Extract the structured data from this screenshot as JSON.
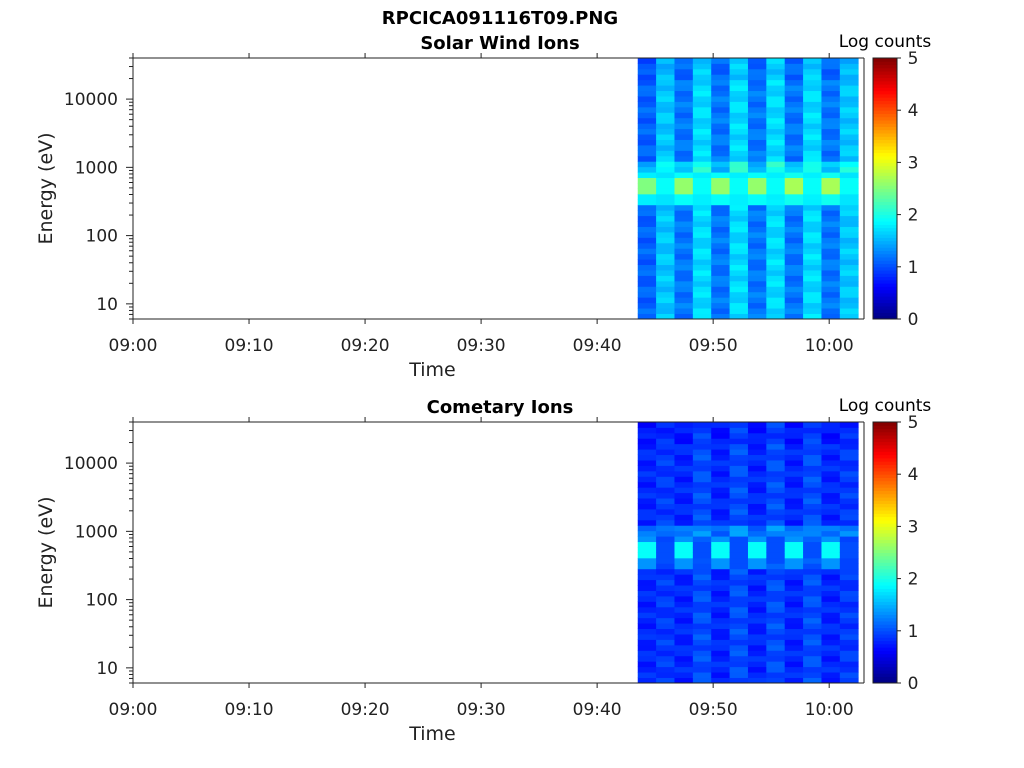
{
  "figure_title": "RPCICA091116T09.PNG",
  "chart_data": [
    {
      "type": "heatmap",
      "title": "Solar Wind Ions",
      "xlabel": "Time",
      "ylabel": "Energy (eV)",
      "x_ticks": [
        "09:00",
        "09:10",
        "09:20",
        "09:30",
        "09:40",
        "09:50",
        "10:00"
      ],
      "xlim": [
        "09:00",
        "10:03"
      ],
      "y_scale": "log",
      "y_ticks": [
        10,
        100,
        1000,
        10000
      ],
      "y_tick_labels": [
        "10",
        "100",
        "1000",
        "10000"
      ],
      "ylim": [
        6,
        40000
      ],
      "colorbar": {
        "label": "Log counts",
        "range": [
          0,
          5
        ],
        "ticks": [
          "0",
          "1",
          "2",
          "3",
          "4",
          "5"
        ],
        "colormap": "jet"
      },
      "data_start": "09:43:30",
      "data_end": "10:02:30",
      "sweeps": [
        {
          "t": "09:43:30",
          "bg": 1.1,
          "peak": 2.5
        },
        {
          "t": "09:45:10",
          "bg": 1.6,
          "peak": 1.9
        },
        {
          "t": "09:46:50",
          "bg": 1.2,
          "peak": 2.6
        },
        {
          "t": "09:48:30",
          "bg": 1.7,
          "peak": 1.9
        },
        {
          "t": "09:50:10",
          "bg": 1.2,
          "peak": 2.6
        },
        {
          "t": "09:51:50",
          "bg": 1.7,
          "peak": 1.9
        },
        {
          "t": "09:53:30",
          "bg": 1.2,
          "peak": 2.6
        },
        {
          "t": "09:55:10",
          "bg": 1.7,
          "peak": 1.9
        },
        {
          "t": "09:56:50",
          "bg": 1.2,
          "peak": 2.7
        },
        {
          "t": "09:58:30",
          "bg": 1.7,
          "peak": 1.9
        },
        {
          "t": "10:00:10",
          "bg": 1.2,
          "peak": 2.7
        },
        {
          "t": "10:01:30",
          "bg": 1.6,
          "peak": 1.9
        }
      ],
      "peak_energy_ev": 500
    },
    {
      "type": "heatmap",
      "title": "Cometary Ions",
      "xlabel": "Time",
      "ylabel": "Energy (eV)",
      "x_ticks": [
        "09:00",
        "09:10",
        "09:20",
        "09:30",
        "09:40",
        "09:50",
        "10:00"
      ],
      "xlim": [
        "09:00",
        "10:03"
      ],
      "y_scale": "log",
      "y_ticks": [
        10,
        100,
        1000,
        10000
      ],
      "y_tick_labels": [
        "10",
        "100",
        "1000",
        "10000"
      ],
      "ylim": [
        6,
        40000
      ],
      "colorbar": {
        "label": "Log counts",
        "range": [
          0,
          5
        ],
        "ticks": [
          "0",
          "1",
          "2",
          "3",
          "4",
          "5"
        ],
        "colormap": "jet"
      },
      "data_start": "09:43:30",
      "data_end": "10:02:30",
      "sweeps": [
        {
          "t": "09:43:30",
          "bg": 0.8,
          "peak": 1.9
        },
        {
          "t": "09:45:10",
          "bg": 0.9,
          "peak": 1.0
        },
        {
          "t": "09:46:50",
          "bg": 0.8,
          "peak": 1.9
        },
        {
          "t": "09:48:30",
          "bg": 1.0,
          "peak": 1.0
        },
        {
          "t": "09:50:10",
          "bg": 0.8,
          "peak": 1.9
        },
        {
          "t": "09:51:50",
          "bg": 1.0,
          "peak": 1.0
        },
        {
          "t": "09:53:30",
          "bg": 0.8,
          "peak": 1.9
        },
        {
          "t": "09:55:10",
          "bg": 1.0,
          "peak": 1.0
        },
        {
          "t": "09:56:50",
          "bg": 0.8,
          "peak": 1.9
        },
        {
          "t": "09:58:30",
          "bg": 1.0,
          "peak": 1.0
        },
        {
          "t": "10:00:10",
          "bg": 0.8,
          "peak": 1.9
        },
        {
          "t": "10:01:30",
          "bg": 0.9,
          "peak": 1.0
        }
      ],
      "peak_energy_ev": 500
    }
  ]
}
